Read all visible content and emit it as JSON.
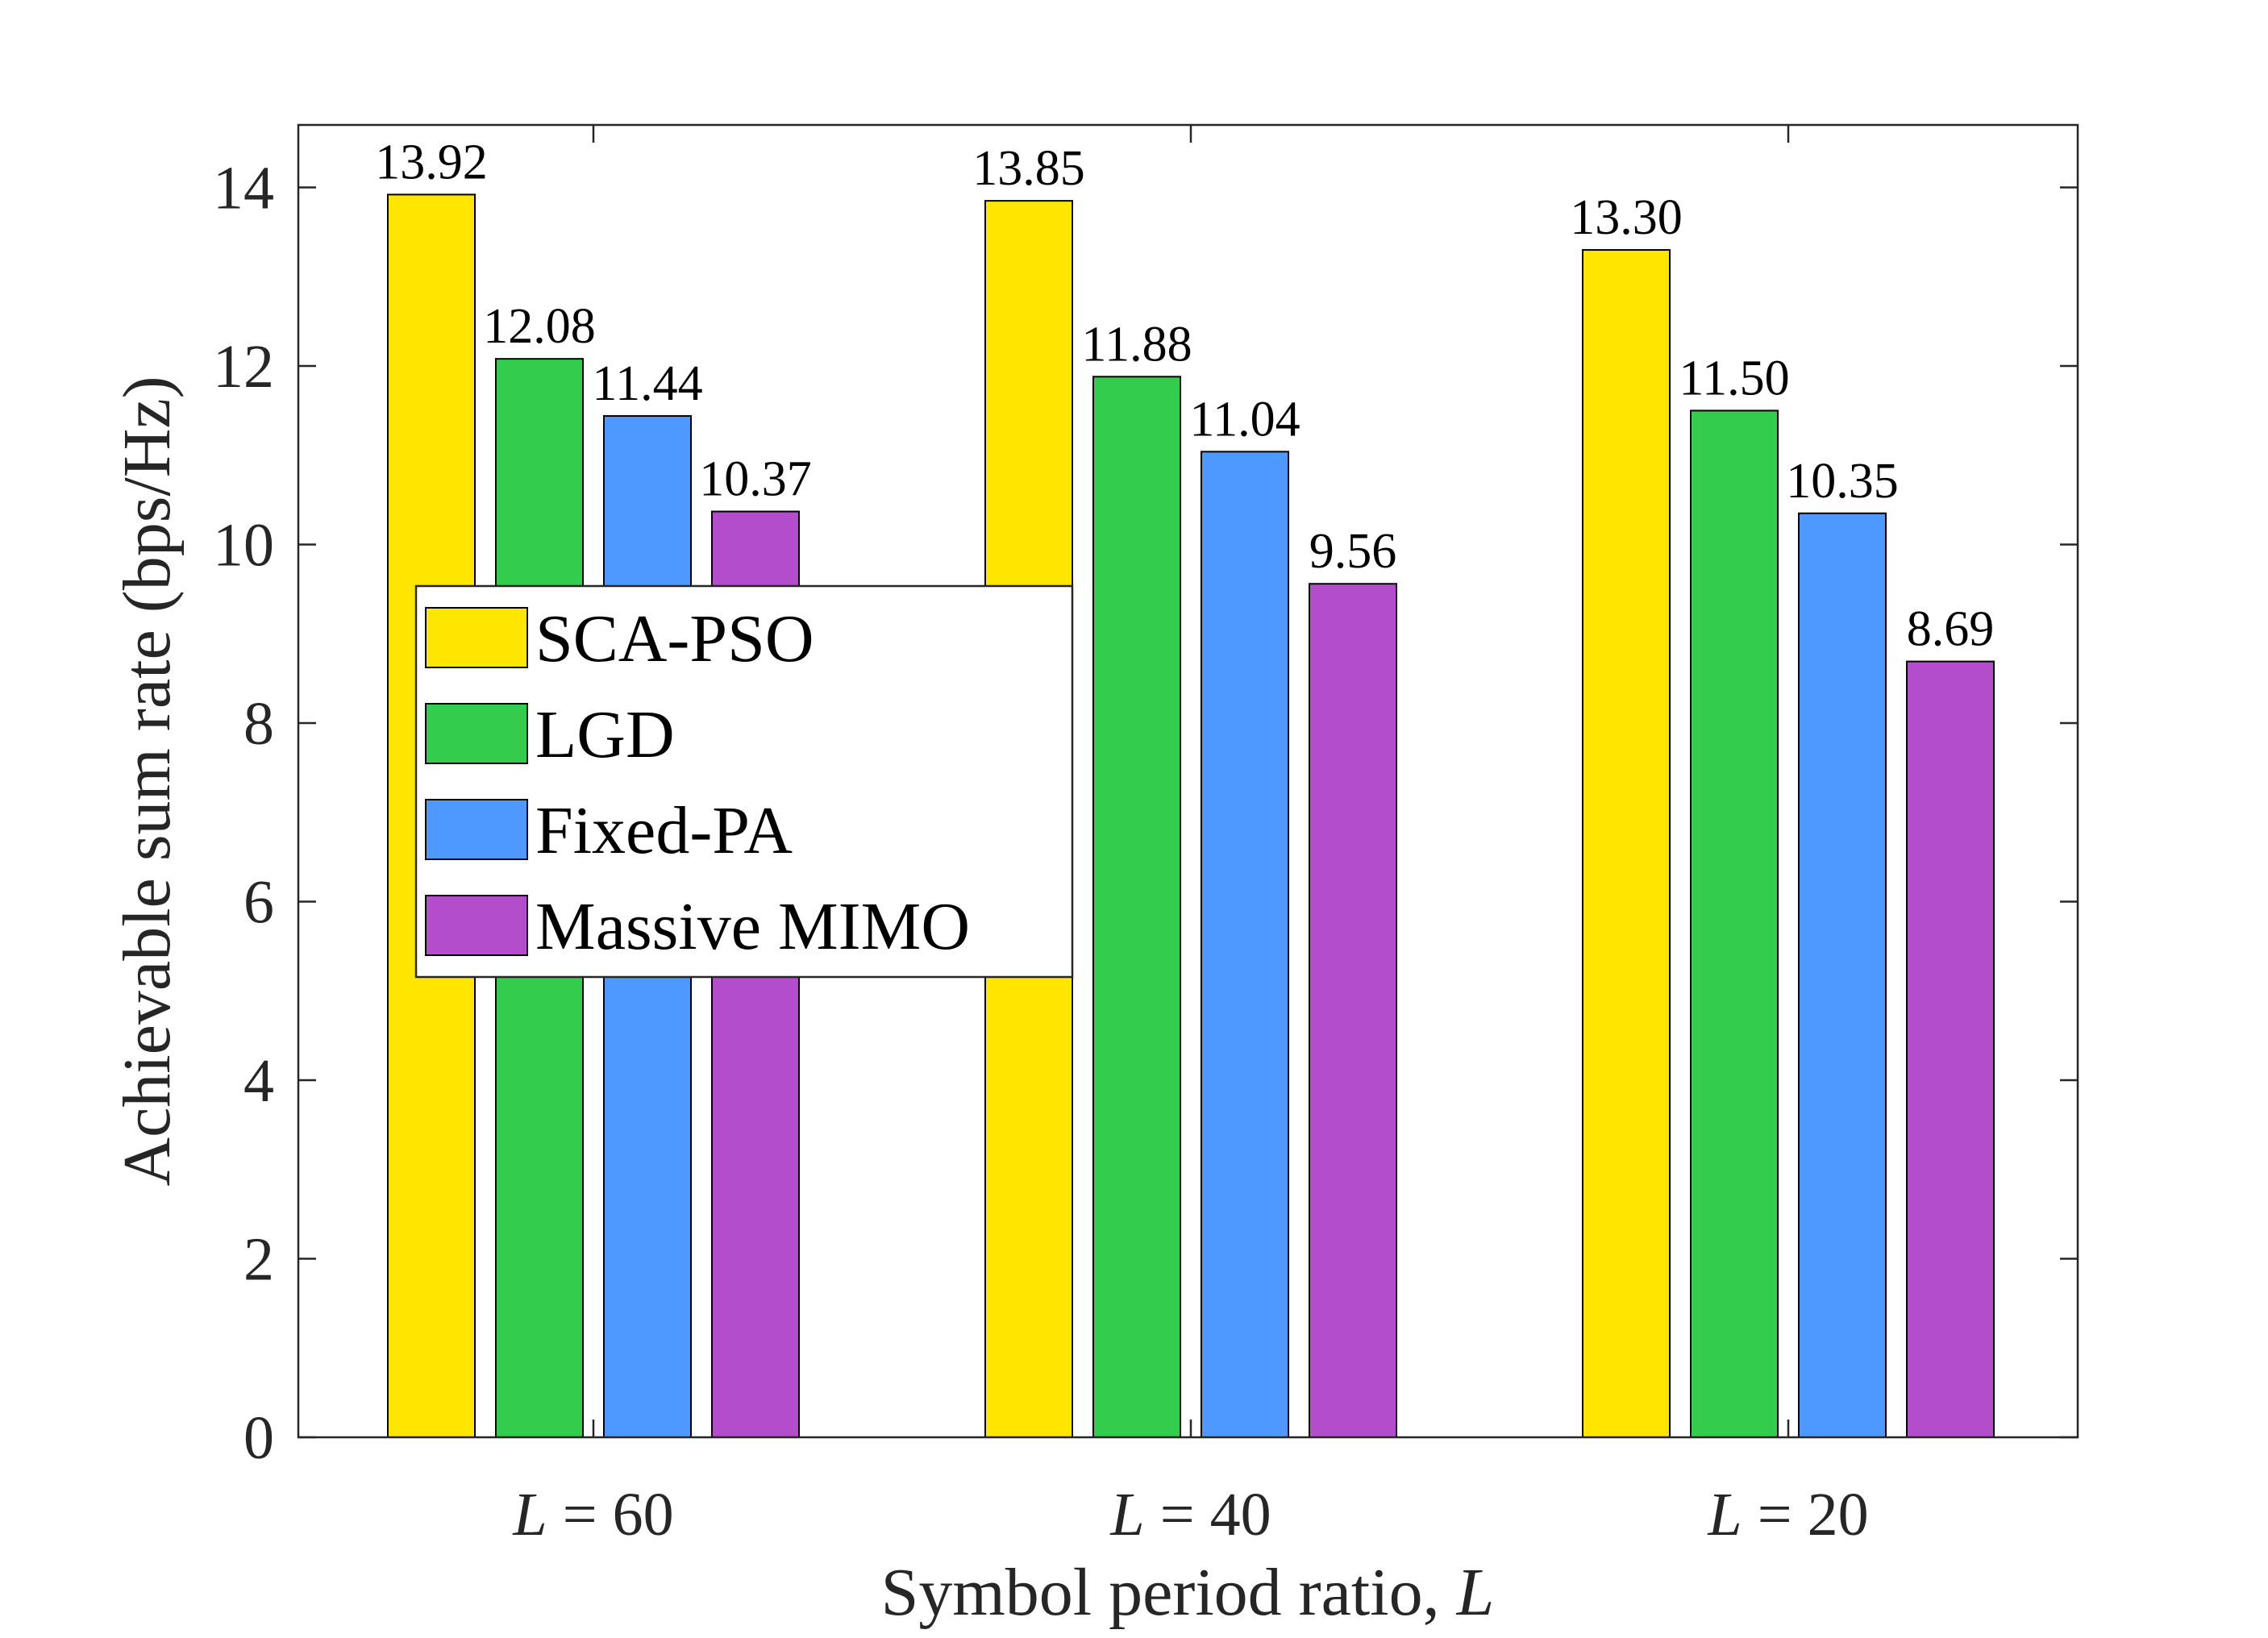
{
  "chart_data": {
    "type": "bar",
    "title": "",
    "categories": [
      "L = 60",
      "L = 40",
      "L = 20"
    ],
    "category_parts": [
      {
        "var": "L",
        "rest": " = 60"
      },
      {
        "var": "L",
        "rest": " = 40"
      },
      {
        "var": "L",
        "rest": " = 20"
      }
    ],
    "series": [
      {
        "name": "SCA-PSO",
        "color": "#FFE600",
        "values": [
          13.92,
          13.85,
          13.3
        ],
        "labels": [
          "13.92",
          "13.85",
          "13.30"
        ]
      },
      {
        "name": "LGD",
        "color": "#33CC4D",
        "values": [
          12.08,
          11.88,
          11.5
        ],
        "labels": [
          "12.08",
          "11.88",
          "11.50"
        ]
      },
      {
        "name": "Fixed-PA",
        "color": "#4D99FF",
        "values": [
          11.44,
          11.04,
          10.35
        ],
        "labels": [
          "11.44",
          "11.04",
          "10.35"
        ]
      },
      {
        "name": "Massive MIMO",
        "color": "#B34DCC",
        "values": [
          10.37,
          9.56,
          8.69
        ],
        "labels": [
          "10.37",
          "9.56",
          "8.69"
        ]
      }
    ],
    "xlabel": "Symbol period ratio, L",
    "xlabel_parts": {
      "text": "Symbol period ratio, ",
      "var": "L"
    },
    "ylabel": "Achievable sum rate (bps/Hz)",
    "ylim": [
      0,
      14.7
    ],
    "yticks": [
      "0",
      "2",
      "4",
      "6",
      "8",
      "10",
      "12",
      "14"
    ],
    "legend_position": "center-left",
    "grid": false
  }
}
